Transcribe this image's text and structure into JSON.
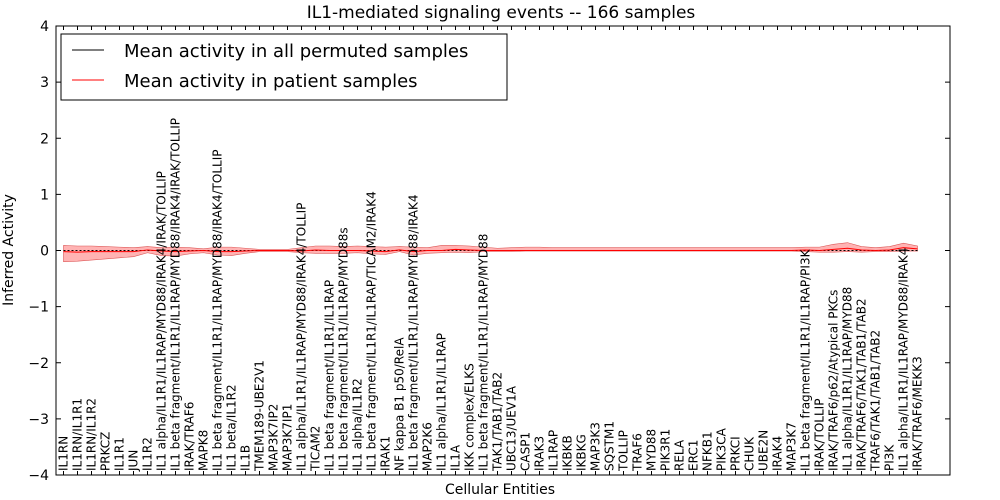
{
  "chart_data": {
    "type": "line",
    "title": "IL1-mediated signaling events -- 166 samples",
    "xlabel": "Cellular Entities",
    "ylabel": "Inferred Activity",
    "ylim": [
      -4,
      4
    ],
    "yticks": [
      "−4",
      "−3",
      "−2",
      "−1",
      "0",
      "1",
      "2",
      "3",
      "4"
    ],
    "ytick_values": [
      -4,
      -3,
      -2,
      -1,
      0,
      1,
      2,
      3,
      4
    ],
    "grid": false,
    "legend_position": "top-left",
    "colors": {
      "permuted": "#000000",
      "patient": "#ff0000",
      "band": "#ff9999",
      "band_edge": "#dd5555"
    },
    "categories": [
      "IL1RN",
      "IL1RN/IL1R1",
      "IL1RN/IL1R2",
      "PRKCZ",
      "IL1R1",
      "JUN",
      "IL1R2",
      "IL1 alpha/IL1R1/IL1RAP/MYD88/IRAK4/IRAK/TOLLIP",
      "IL1 beta fragment/IL1R1/IL1RAP/MYD88/IRAK4/IRAK/TOLLIP",
      "IRAK/TRAF6",
      "MAPK8",
      "IL1 beta fragment/IL1R1/IL1RAP/MYD88/IRAK4/TOLLIP",
      "IL1 beta/IL1R2",
      "IL1B",
      "TMEM189-UBE2V1",
      "MAP3K7IP2",
      "MAP3K7IP1",
      "IL1 alpha/IL1R1/IL1RAP/MYD88/IRAK4/TOLLIP",
      "TICAM2",
      "IL1 beta fragment/IL1R1/IL1RAP",
      "IL1 beta fragment/IL1R1/IL1RAP/MYD88s",
      "IL1 alpha/IL1R2",
      "IL1 beta fragment/IL1R1/IL1RAP/TICAM2/IRAK4",
      "IRAK1",
      "NF kappa B1 p50/RelA",
      "IL1 beta fragment/IL1R1/IL1RAP/MYD88/IRAK4",
      "MAP2K6",
      "IL1 alpha/IL1R1/IL1RAP",
      "IL1A",
      "IKK complex/ELKS",
      "IL1 beta fragment/IL1R1/IL1RAP/MYD88",
      "TAK1/TAB1/TAB2",
      "UBC13/UEV1A",
      "CASP1",
      "IRAK3",
      "IL1RAP",
      "IKBKB",
      "IKBKG",
      "MAP3K3",
      "SQSTM1",
      "TOLLIP",
      "TRAF6",
      "MYD88",
      "PIK3R1",
      "RELA",
      "ERC1",
      "NFKB1",
      "PIK3CA",
      "PRKCI",
      "CHUK",
      "UBE2N",
      "IRAK4",
      "MAP3K7",
      "IL1 beta fragment/IL1R1/IL1RAP/PI3K",
      "IRAK/TOLLIP",
      "IRAK/TRAF6/p62/Atypical PKCs",
      "IL1 alpha/IL1R1/IL1RAP/MYD88",
      "IRAK/TRAF6/TAK1/TAB1/TAB2",
      "TRAF6/TAK1/TAB1/TAB2",
      "PI3K",
      "IL1 alpha/IL1R1/IL1RAP/MYD88/IRAK4",
      "IRAK/TRAF6/MEKK3"
    ],
    "series": [
      {
        "name": "Mean activity in all permuted samples",
        "values": [
          0.0,
          0.0,
          0.0,
          0.0,
          0.0,
          0.0,
          0.0,
          0.0,
          0.0,
          0.0,
          0.0,
          0.0,
          0.0,
          0.0,
          0.0,
          0.0,
          0.0,
          0.0,
          0.0,
          0.0,
          0.0,
          0.0,
          0.0,
          0.0,
          0.0,
          0.0,
          0.0,
          0.0,
          0.0,
          0.0,
          0.0,
          0.0,
          0.0,
          0.0,
          0.0,
          0.0,
          0.0,
          0.0,
          0.0,
          0.0,
          0.0,
          0.0,
          0.0,
          0.0,
          0.0,
          0.0,
          0.0,
          0.0,
          0.0,
          0.0,
          0.0,
          0.0,
          0.0,
          0.0,
          0.0,
          0.0,
          0.0,
          0.0,
          0.0,
          0.0,
          0.0,
          0.0
        ]
      },
      {
        "name": "Mean activity in patient samples",
        "values": [
          -0.02,
          -0.03,
          -0.02,
          -0.02,
          -0.02,
          -0.02,
          0.01,
          -0.01,
          -0.02,
          -0.01,
          0.0,
          -0.02,
          -0.02,
          -0.01,
          0.0,
          0.0,
          0.0,
          -0.01,
          0.01,
          0.0,
          0.0,
          0.0,
          -0.01,
          -0.02,
          0.01,
          -0.02,
          0.0,
          0.0,
          0.02,
          0.01,
          0.0,
          0.0,
          0.0,
          0.0,
          0.0,
          0.0,
          0.0,
          0.0,
          0.0,
          0.0,
          0.0,
          0.0,
          0.0,
          0.0,
          0.0,
          0.0,
          0.0,
          0.0,
          0.0,
          0.0,
          0.0,
          0.0,
          0.0,
          0.01,
          0.0,
          0.02,
          0.04,
          0.01,
          0.0,
          0.01,
          0.05,
          0.03
        ],
        "lower": [
          -0.2,
          -0.19,
          -0.17,
          -0.15,
          -0.13,
          -0.11,
          -0.04,
          -0.09,
          -0.1,
          -0.06,
          -0.04,
          -0.08,
          -0.09,
          -0.05,
          -0.02,
          -0.02,
          -0.02,
          -0.04,
          -0.05,
          -0.05,
          -0.05,
          -0.04,
          -0.06,
          -0.07,
          -0.02,
          -0.08,
          -0.05,
          -0.04,
          -0.03,
          -0.04,
          -0.02,
          -0.02,
          -0.02,
          -0.01,
          -0.01,
          -0.01,
          -0.01,
          -0.01,
          -0.01,
          -0.01,
          -0.01,
          -0.01,
          -0.01,
          -0.01,
          -0.01,
          -0.01,
          -0.01,
          -0.01,
          -0.01,
          -0.01,
          -0.01,
          -0.01,
          -0.01,
          -0.02,
          -0.03,
          -0.03,
          -0.02,
          -0.03,
          -0.02,
          -0.02,
          -0.01,
          -0.01
        ],
        "upper": [
          0.09,
          0.08,
          0.08,
          0.07,
          0.06,
          0.05,
          0.07,
          0.05,
          0.06,
          0.05,
          0.03,
          0.06,
          0.06,
          0.04,
          0.02,
          0.02,
          0.02,
          0.05,
          0.08,
          0.08,
          0.07,
          0.08,
          0.07,
          0.06,
          0.07,
          0.06,
          0.05,
          0.09,
          0.09,
          0.08,
          0.06,
          0.04,
          0.05,
          0.06,
          0.06,
          0.05,
          0.05,
          0.05,
          0.05,
          0.05,
          0.05,
          0.05,
          0.05,
          0.05,
          0.05,
          0.05,
          0.05,
          0.05,
          0.05,
          0.05,
          0.05,
          0.05,
          0.05,
          0.06,
          0.06,
          0.11,
          0.14,
          0.07,
          0.05,
          0.07,
          0.13,
          0.08
        ]
      }
    ]
  }
}
